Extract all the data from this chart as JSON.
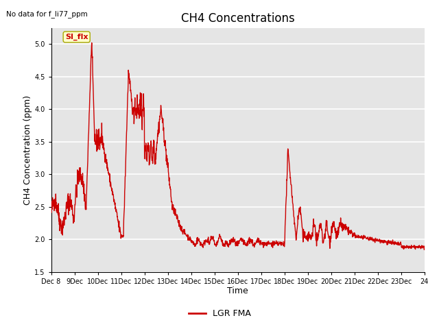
{
  "title": "CH4 Concentrations",
  "xlabel": "Time",
  "ylabel": "CH4 Concentration (ppm)",
  "ylim": [
    1.5,
    5.25
  ],
  "yticks": [
    1.5,
    2.0,
    2.5,
    3.0,
    3.5,
    4.0,
    4.5,
    5.0
  ],
  "line_color": "#cc0000",
  "line_width": 1.0,
  "background_color": "#ffffff",
  "axes_bg_color": "#e5e5e5",
  "grid_color": "#ffffff",
  "title_fontsize": 12,
  "label_fontsize": 9,
  "tick_fontsize": 7,
  "top_left_text": "No data for f_li77_ppm",
  "annotation_text": "SI_flx",
  "annotation_color": "#cc0000",
  "annotation_bg": "#ffffcc",
  "legend_label": "LGR FMA",
  "legend_color": "#cc0000",
  "xtick_labels": [
    "Dec 8",
    "9Dec",
    "10Dec",
    "11Dec",
    "12Dec",
    "13Dec",
    "14Dec",
    "15Dec",
    "16Dec",
    "17Dec",
    "18Dec",
    "19Dec",
    "20Dec",
    "21Dec",
    "22Dec",
    "23Dec",
    "24"
  ],
  "num_points": 1600
}
